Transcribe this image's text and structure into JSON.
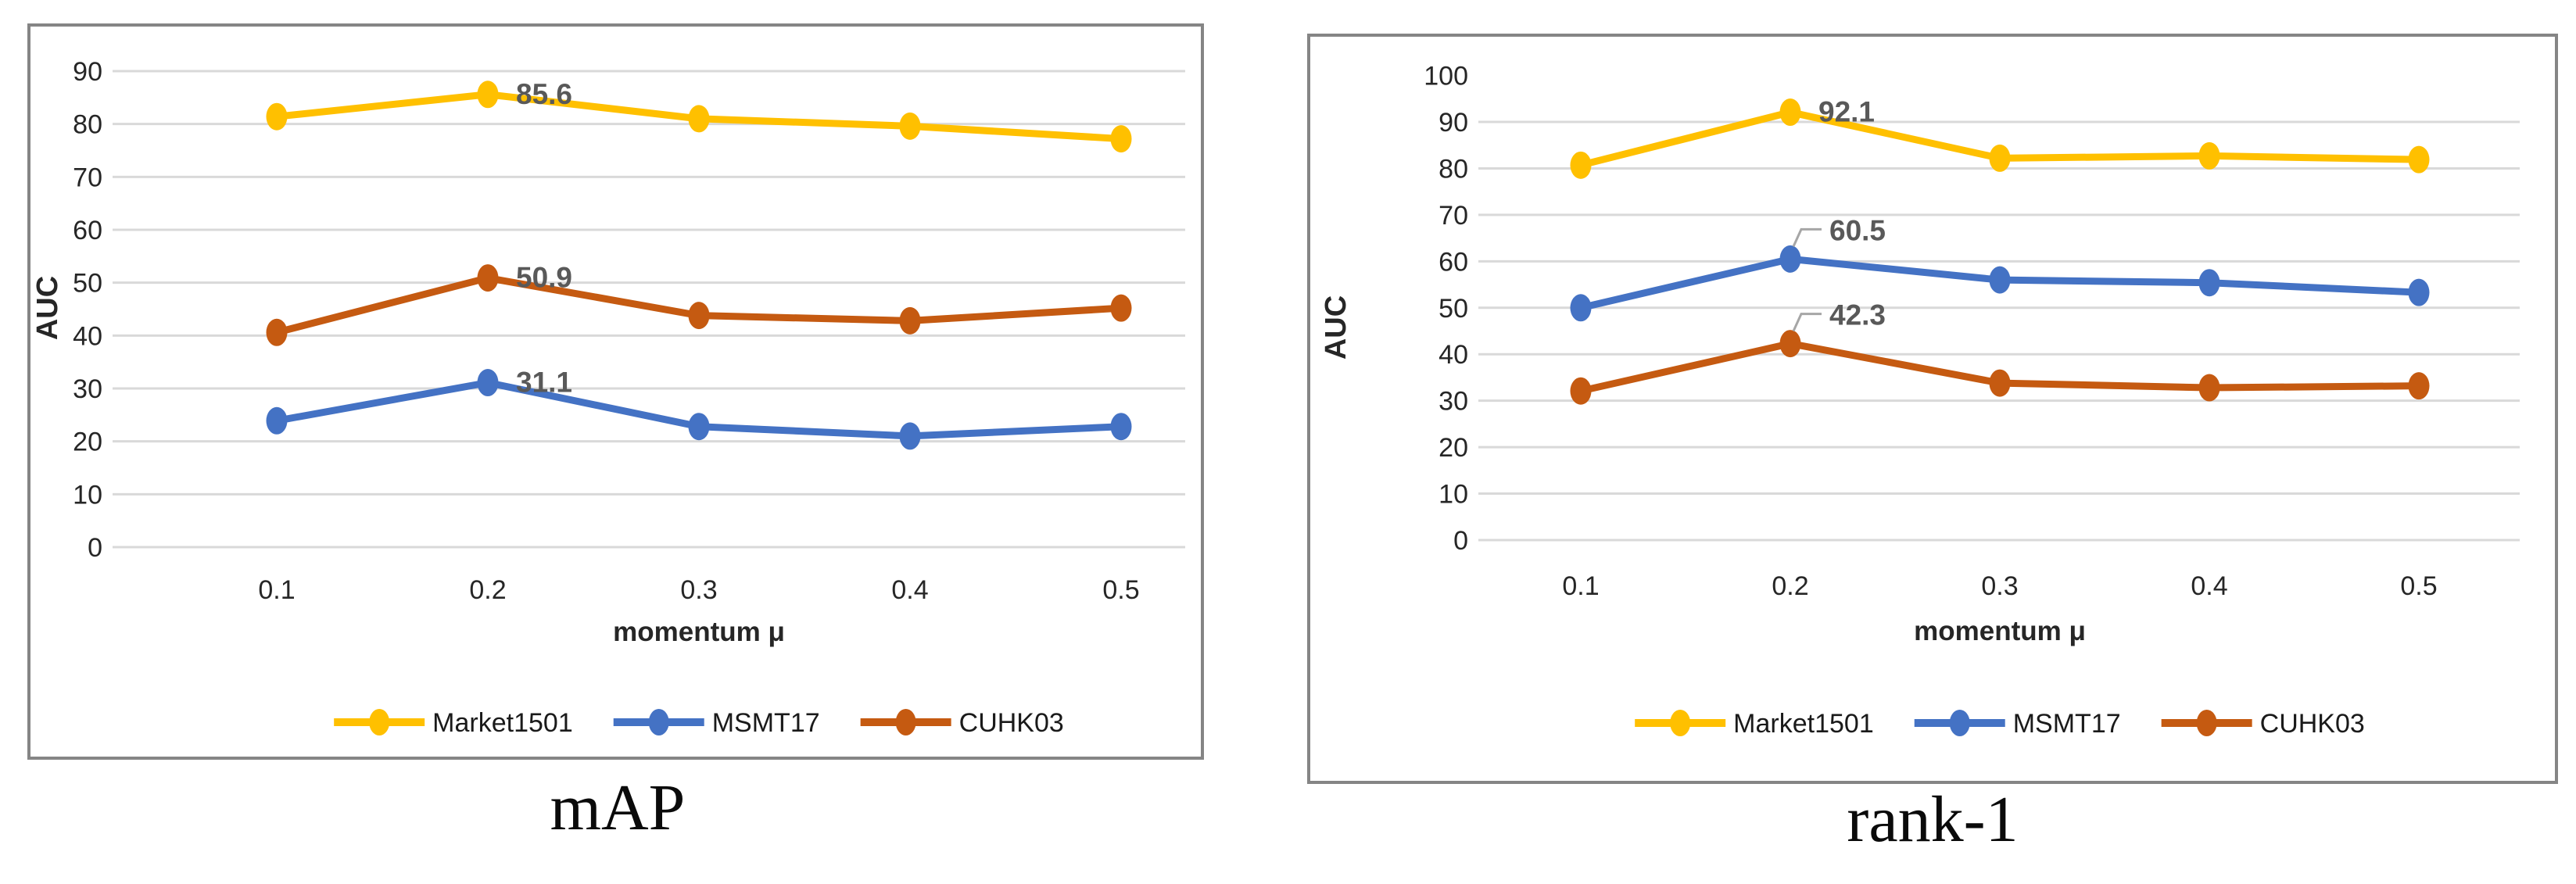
{
  "figure": {
    "background": "#ffffff",
    "panel_border_color": "#858585",
    "gridline_color": "#d9d9d9",
    "tick_label_color": "#262626",
    "axis_title_color": "#262626",
    "data_label_color": "#595959",
    "leader_line_color": "#a6a6a6"
  },
  "chart_data": [
    {
      "type": "line",
      "title": "mAP",
      "xlabel": "momentum μ",
      "ylabel": "AUC",
      "x": [
        0.1,
        0.2,
        0.3,
        0.4,
        0.5
      ],
      "x_tick_labels": [
        "0.1",
        "0.2",
        "0.3",
        "0.4",
        "0.5"
      ],
      "ylim": [
        0,
        90
      ],
      "y_tick_labels": [
        "0",
        "10",
        "20",
        "30",
        "40",
        "50",
        "60",
        "70",
        "80",
        "90"
      ],
      "grid": true,
      "gridline_max": 90,
      "legend_position": "bottom",
      "series": [
        {
          "name": "Market1501",
          "color": "#FFC000",
          "values": [
            81.4,
            85.6,
            81.0,
            79.6,
            77.2
          ],
          "data_label": {
            "text": "85.6",
            "index": 1,
            "leader": false
          }
        },
        {
          "name": "MSMT17",
          "color": "#4472C4",
          "values": [
            23.9,
            31.1,
            22.8,
            21.0,
            22.8
          ],
          "data_label": {
            "text": "31.1",
            "index": 1,
            "leader": false
          }
        },
        {
          "name": "CUHK03",
          "color": "#C55A11",
          "values": [
            40.6,
            50.9,
            43.8,
            42.8,
            45.2
          ],
          "data_label": {
            "text": "50.9",
            "index": 1,
            "leader": false
          }
        }
      ]
    },
    {
      "type": "line",
      "title": "rank-1",
      "xlabel": "momentum μ",
      "ylabel": "AUC",
      "x": [
        0.1,
        0.2,
        0.3,
        0.4,
        0.5
      ],
      "x_tick_labels": [
        "0.1",
        "0.2",
        "0.3",
        "0.4",
        "0.5"
      ],
      "ylim": [
        0,
        100
      ],
      "y_tick_labels": [
        "0",
        "10",
        "20",
        "30",
        "40",
        "50",
        "60",
        "70",
        "80",
        "90",
        "100"
      ],
      "grid": true,
      "gridline_max": 90,
      "legend_position": "bottom",
      "series": [
        {
          "name": "Market1501",
          "color": "#FFC000",
          "values": [
            80.7,
            92.1,
            82.2,
            82.7,
            81.9
          ],
          "data_label": {
            "text": "92.1",
            "index": 1,
            "leader": false
          }
        },
        {
          "name": "MSMT17",
          "color": "#4472C4",
          "values": [
            50.0,
            60.5,
            56.0,
            55.4,
            53.3
          ],
          "data_label": {
            "text": "60.5",
            "index": 1,
            "leader": true
          }
        },
        {
          "name": "CUHK03",
          "color": "#C55A11",
          "values": [
            32.1,
            42.3,
            33.8,
            32.8,
            33.2
          ],
          "data_label": {
            "text": "42.3",
            "index": 1,
            "leader": true
          }
        }
      ]
    }
  ]
}
